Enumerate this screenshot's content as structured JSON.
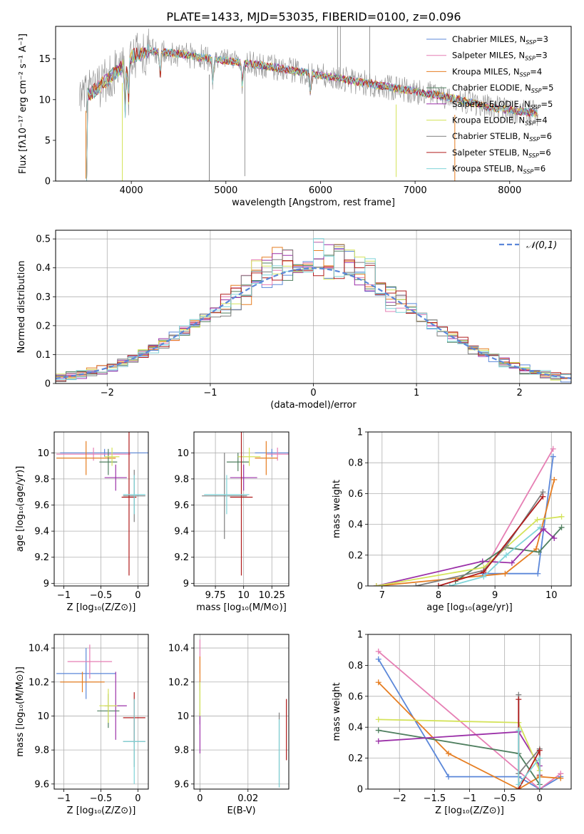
{
  "figure_title": "PLATE=1433, MJD=53035, FIBERID=0100, z=0.096",
  "colors": {
    "Chabrier MILES": "#5b87d9",
    "Salpeter MILES": "#e67fb4",
    "Kroupa MILES": "#e67e22",
    "Chabrier ELODIE": "#4f7f5f",
    "Salpeter ELODIE": "#9b30a8",
    "Kroupa ELODIE": "#d4e35a",
    "Chabrier STELIB": "#7f7f7f",
    "Salpeter STELIB": "#b01c1c",
    "Kroupa STELIB": "#7fd4d8"
  },
  "chart_data": [
    {
      "id": "spectrum",
      "type": "line",
      "title": "PLATE=1433, MJD=53035, FIBERID=0100, z=0.096",
      "xlabel": "wavelength [Angstrom, rest frame]",
      "ylabel": "Flux [fλ10⁻¹⁷ erg cm⁻² s⁻¹ A⁻¹]",
      "xlim": [
        3200,
        8650
      ],
      "ylim": [
        0,
        19
      ],
      "xticks": [
        4000,
        5000,
        6000,
        7000,
        8000
      ],
      "yticks": [
        0,
        5,
        10,
        15
      ],
      "grid": false,
      "legend": "upper right",
      "legend_entries": [
        "Chabrier MILES, N_SSP=3",
        "Salpeter MILES, N_SSP=3",
        "Kroupa MILES, N_SSP=4",
        "Chabrier ELODIE, N_SSP=5",
        "Salpeter ELODIE, N_SSP=5",
        "Kroupa ELODIE, N_SSP=4",
        "Chabrier STELIB, N_SSP=6",
        "Salpeter STELIB, N_SSP=6",
        "Kroupa STELIB, N_SSP=6"
      ],
      "continuum": {
        "x": [
          3450,
          3600,
          3750,
          3900,
          4000,
          4200,
          4500,
          5000,
          5500,
          6000,
          6500,
          7000,
          7400,
          7800,
          8300
        ],
        "y": [
          10.3,
          11.0,
          12.5,
          14.0,
          15.3,
          16.0,
          15.6,
          14.8,
          14.0,
          13.0,
          12.0,
          11.0,
          10.2,
          9.0,
          8.3
        ]
      }
    },
    {
      "id": "residuals",
      "type": "line",
      "xlabel": "(data-model)/error",
      "ylabel": "Normed distribution",
      "xlim": [
        -2.5,
        2.5
      ],
      "ylim": [
        0,
        0.53
      ],
      "xticks": [
        -2,
        -1,
        0,
        1,
        2
      ],
      "yticks": [
        0.0,
        0.1,
        0.2,
        0.3,
        0.4,
        0.5
      ],
      "grid": true,
      "legend": "upper right",
      "legend_entries": [
        "𝒩(0,1)"
      ],
      "normal_mean": 0,
      "normal_sigma": 1,
      "bin_width": 0.1
    },
    {
      "id": "age-vs-Z",
      "type": "scatter",
      "xlabel": "Z [log₁₀(Z/Z⊙)]",
      "ylabel": "age  [log₁₀(age/yr)]",
      "xlim": [
        -1.13,
        0.14
      ],
      "ylim": [
        8.98,
        10.16
      ],
      "xticks": [
        -1.0,
        -0.5,
        0.0
      ],
      "yticks": [
        9.0,
        9.2,
        9.4,
        9.6,
        9.8,
        10.0
      ],
      "grid": true,
      "points": [
        {
          "model": "Chabrier MILES",
          "x": -0.45,
          "y": 10.0,
          "xerr": 0.6,
          "yerr": 0.03
        },
        {
          "model": "Salpeter MILES",
          "x": -0.6,
          "y": 9.99,
          "xerr": 0.5,
          "yerr": 0.05
        },
        {
          "model": "Kroupa MILES",
          "x": -0.7,
          "y": 9.96,
          "xerr": 0.4,
          "yerr": 0.13
        },
        {
          "model": "Chabrier ELODIE",
          "x": -0.4,
          "y": 9.93,
          "xerr": 0.12,
          "yerr": 0.1
        },
        {
          "model": "Salpeter ELODIE",
          "x": -0.3,
          "y": 9.81,
          "xerr": 0.15,
          "yerr": 0.1
        },
        {
          "model": "Kroupa ELODIE",
          "x": -0.35,
          "y": 9.97,
          "xerr": 0.1,
          "yerr": 0.07
        },
        {
          "model": "Chabrier STELIB",
          "x": -0.05,
          "y": 9.67,
          "xerr": 0.15,
          "yerr": 0.2
        },
        {
          "model": "Salpeter STELIB",
          "x": -0.12,
          "y": 9.66,
          "xerr": 0.1,
          "yerr": 0.6
        },
        {
          "model": "Kroupa STELIB",
          "x": -0.05,
          "y": 9.68,
          "xerr": 0.15,
          "yerr": 0.15
        }
      ]
    },
    {
      "id": "age-vs-mass",
      "type": "scatter",
      "xlabel": "mass [log₁₀(M/M⊙)]",
      "ylabel": "",
      "xlim": [
        9.56,
        10.4
      ],
      "ylim": [
        8.98,
        10.16
      ],
      "xticks": [
        9.75,
        10.0,
        10.25
      ],
      "yticks": [
        9.0,
        9.2,
        9.4,
        9.6,
        9.8,
        10.0
      ],
      "grid": true,
      "points": [
        {
          "model": "Chabrier MILES",
          "x": 10.25,
          "y": 10.0,
          "xerr": 0.15,
          "yerr": 0.03
        },
        {
          "model": "Salpeter MILES",
          "x": 10.3,
          "y": 9.99,
          "xerr": 0.1,
          "yerr": 0.05
        },
        {
          "model": "Kroupa MILES",
          "x": 10.2,
          "y": 9.96,
          "xerr": 0.1,
          "yerr": 0.13
        },
        {
          "model": "Chabrier ELODIE",
          "x": 9.95,
          "y": 9.93,
          "xerr": 0.1,
          "yerr": 0.07
        },
        {
          "model": "Salpeter ELODIE",
          "x": 10.0,
          "y": 9.81,
          "xerr": 0.12,
          "yerr": 0.1
        },
        {
          "model": "Kroupa ELODIE",
          "x": 10.05,
          "y": 9.97,
          "xerr": 0.1,
          "yerr": 0.07
        },
        {
          "model": "Chabrier STELIB",
          "x": 9.83,
          "y": 9.67,
          "xerr": 0.2,
          "yerr": 0.33
        },
        {
          "model": "Salpeter STELIB",
          "x": 9.98,
          "y": 9.66,
          "xerr": 0.1,
          "yerr": 0.6
        },
        {
          "model": "Kroupa STELIB",
          "x": 9.85,
          "y": 9.68,
          "xerr": 0.2,
          "yerr": 0.15
        }
      ]
    },
    {
      "id": "weight-vs-age",
      "type": "line",
      "xlabel": "age  [log₁₀(age/yr)]",
      "ylabel": "mass weight",
      "xlim": [
        6.75,
        10.35
      ],
      "ylim": [
        0,
        1
      ],
      "xticks": [
        7,
        8,
        9,
        10
      ],
      "yticks": [
        0.0,
        0.2,
        0.4,
        0.6,
        0.8,
        1.0
      ],
      "grid": true,
      "series": [
        {
          "model": "Chabrier MILES",
          "x": [
            8.78,
            9.76,
            10.03
          ],
          "y": [
            0.08,
            0.08,
            0.84
          ]
        },
        {
          "model": "Salpeter MILES",
          "x": [
            8.8,
            10.03
          ],
          "y": [
            0.1,
            0.89
          ]
        },
        {
          "model": "Kroupa MILES",
          "x": [
            6.9,
            9.18,
            9.73,
            10.05
          ],
          "y": [
            0.0,
            0.08,
            0.24,
            0.69
          ]
        },
        {
          "model": "Chabrier ELODIE",
          "x": [
            8.3,
            9.18,
            9.78,
            10.18
          ],
          "y": [
            0.03,
            0.25,
            0.22,
            0.38
          ]
        },
        {
          "model": "Salpeter ELODIE",
          "x": [
            6.9,
            8.78,
            9.3,
            9.86,
            10.05
          ],
          "y": [
            0.0,
            0.16,
            0.15,
            0.37,
            0.31
          ]
        },
        {
          "model": "Kroupa ELODIE",
          "x": [
            6.9,
            8.8,
            9.75,
            10.18
          ],
          "y": [
            0.0,
            0.12,
            0.43,
            0.45
          ]
        },
        {
          "model": "Chabrier STELIB",
          "x": [
            7.6,
            8.8,
            9.2,
            9.85
          ],
          "y": [
            0.0,
            0.1,
            0.26,
            0.61
          ]
        },
        {
          "model": "Salpeter STELIB",
          "x": [
            8.0,
            8.8,
            9.85
          ],
          "y": [
            0.0,
            0.09,
            0.58
          ]
        },
        {
          "model": "Kroupa STELIB",
          "x": [
            8.2,
            8.8,
            9.2,
            9.8
          ],
          "y": [
            0.0,
            0.06,
            0.2,
            0.38
          ]
        }
      ]
    },
    {
      "id": "mass-vs-Z",
      "type": "scatter",
      "xlabel": "Z [log₁₀(Z/Z⊙)]",
      "ylabel": "mass [log₁₀(M/M⊙)]",
      "xlim": [
        -1.13,
        0.14
      ],
      "ylim": [
        9.57,
        10.48
      ],
      "xticks": [
        -1.0,
        -0.5,
        0.0
      ],
      "yticks": [
        9.6,
        9.8,
        10.0,
        10.2,
        10.4
      ],
      "grid": true,
      "points": [
        {
          "model": "Chabrier MILES",
          "x": -0.7,
          "y": 10.25,
          "xerr": 0.4,
          "yerr": 0.15
        },
        {
          "model": "Salpeter MILES",
          "x": -0.65,
          "y": 10.32,
          "xerr": 0.3,
          "yerr": 0.1
        },
        {
          "model": "Kroupa MILES",
          "x": -0.75,
          "y": 10.2,
          "xerr": 0.3,
          "yerr": 0.06
        },
        {
          "model": "Chabrier ELODIE",
          "x": -0.4,
          "y": 10.03,
          "xerr": 0.15,
          "yerr": 0.1
        },
        {
          "model": "Salpeter ELODIE",
          "x": -0.3,
          "y": 10.06,
          "xerr": 0.15,
          "yerr": 0.2
        },
        {
          "model": "Kroupa ELODIE",
          "x": -0.4,
          "y": 10.06,
          "xerr": 0.12,
          "yerr": 0.1
        },
        {
          "model": "Chabrier STELIB",
          "x": -0.05,
          "y": 9.85,
          "xerr": 0.15,
          "yerr": 0.15
        },
        {
          "model": "Salpeter STELIB",
          "x": -0.05,
          "y": 9.99,
          "xerr": 0.15,
          "yerr": 0.15
        },
        {
          "model": "Kroupa STELIB",
          "x": -0.05,
          "y": 9.85,
          "xerr": 0.15,
          "yerr": 0.25
        }
      ]
    },
    {
      "id": "mass-vs-ebv",
      "type": "scatter",
      "xlabel": "E(B-V)",
      "ylabel": "",
      "xlim": [
        -0.0025,
        0.037
      ],
      "ylim": [
        9.57,
        10.48
      ],
      "xticks": [
        0.0,
        0.02
      ],
      "yticks": [
        9.6,
        9.8,
        10.0,
        10.2,
        10.4
      ],
      "grid": true,
      "points": [
        {
          "model": "Chabrier MILES",
          "x": 0.0,
          "y": 10.18,
          "xerr": 0,
          "yerr": 0.03
        },
        {
          "model": "Salpeter MILES",
          "x": 0.0,
          "y": 10.35,
          "xerr": 0,
          "yerr": 0.1
        },
        {
          "model": "Kroupa MILES",
          "x": 0.0,
          "y": 10.25,
          "xerr": 0,
          "yerr": 0.1
        },
        {
          "model": "Chabrier ELODIE",
          "x": 0.0,
          "y": 10.05,
          "xerr": 0,
          "yerr": 0.1
        },
        {
          "model": "Salpeter ELODIE",
          "x": 0.0,
          "y": 9.9,
          "xerr": 0,
          "yerr": 0.12
        },
        {
          "model": "Kroupa ELODIE",
          "x": 0.0,
          "y": 10.1,
          "xerr": 0,
          "yerr": 0.1
        },
        {
          "model": "Chabrier STELIB",
          "x": 0.033,
          "y": 9.8,
          "xerr": 0,
          "yerr": 0.22
        },
        {
          "model": "Salpeter STELIB",
          "x": 0.036,
          "y": 9.92,
          "xerr": 0,
          "yerr": 0.18
        },
        {
          "model": "Kroupa STELIB",
          "x": 0.033,
          "y": 9.78,
          "xerr": 0,
          "yerr": 0.2
        }
      ]
    },
    {
      "id": "weight-vs-Z",
      "type": "line",
      "xlabel": "Z [log₁₀(Z/Z⊙)]",
      "ylabel": "mass weight",
      "xlim": [
        -2.45,
        0.45
      ],
      "ylim": [
        0,
        1
      ],
      "xticks": [
        -2.0,
        -1.5,
        -1.0,
        -0.5,
        0.0
      ],
      "yticks": [
        0.0,
        0.2,
        0.4,
        0.6,
        0.8,
        1.0
      ],
      "grid": true,
      "series": [
        {
          "model": "Chabrier MILES",
          "x": [
            -2.3,
            -1.3,
            -0.3,
            0.0,
            0.3
          ],
          "y": [
            0.84,
            0.08,
            0.08,
            0.0,
            0.08
          ]
        },
        {
          "model": "Salpeter MILES",
          "x": [
            -2.3,
            0.0,
            0.3
          ],
          "y": [
            0.89,
            0.0,
            0.1
          ]
        },
        {
          "model": "Kroupa MILES",
          "x": [
            -2.3,
            -1.3,
            -0.3,
            0.0,
            0.3
          ],
          "y": [
            0.69,
            0.23,
            0.0,
            0.08,
            0.07
          ]
        },
        {
          "model": "Chabrier ELODIE",
          "x": [
            -2.3,
            -0.3,
            0.0
          ],
          "y": [
            0.38,
            0.23,
            0.03
          ]
        },
        {
          "model": "Salpeter ELODIE",
          "x": [
            -2.3,
            -0.3,
            0.0
          ],
          "y": [
            0.31,
            0.37,
            0.15
          ]
        },
        {
          "model": "Kroupa ELODIE",
          "x": [
            -2.3,
            -0.3,
            0.0
          ],
          "y": [
            0.45,
            0.43,
            0.12
          ]
        },
        {
          "model": "Chabrier STELIB",
          "x": [
            -0.3,
            -0.3,
            0.0,
            0.0
          ],
          "y": [
            0.61,
            0.1,
            0.26,
            0.0
          ]
        },
        {
          "model": "Salpeter STELIB",
          "x": [
            -0.3,
            -0.3,
            0.0,
            0.0
          ],
          "y": [
            0.58,
            0.0,
            0.25,
            0.09
          ]
        },
        {
          "model": "Kroupa STELIB",
          "x": [
            -0.3,
            -0.3,
            0.0,
            0.0
          ],
          "y": [
            0.38,
            0.03,
            0.2,
            0.0
          ]
        }
      ]
    }
  ]
}
